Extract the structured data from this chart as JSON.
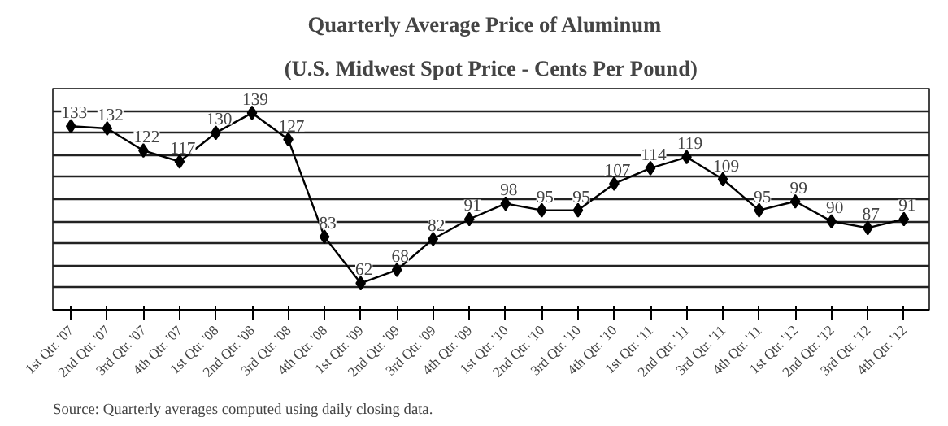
{
  "chart_data": {
    "type": "line",
    "title": "Quarterly  Average Price  of Aluminum",
    "subtitle": "(U.S. Midwest Spot Price - Cents Per Pound)",
    "categories": [
      "1st Qtr. '07",
      "2nd Qtr. '07",
      "3rd Qtr. '07",
      "4th Qtr. '07",
      "1st Qtr. '08",
      "2nd Qtr. '08",
      "3rd Qtr. '08",
      "4th Qtr. '08",
      "1st Qtr. '09",
      "2nd Qtr. '09",
      "3rd Qtr. '09",
      "4th Qtr. '09",
      "1st Qtr. '10",
      "2nd Qtr. '10",
      "3rd Qtr. '10",
      "4th Qtr. '10",
      "1st Qtr. '11",
      "2nd Qtr. '11",
      "3rd Qtr. '11",
      "4th Qtr. '11",
      "1st Qtr. '12",
      "2nd Qtr. '12",
      "3rd Qtr. '12",
      "4th Qtr. '12"
    ],
    "series": [
      {
        "color": "#000000",
        "values": [
          133,
          132,
          122,
          117,
          130,
          139,
          127,
          83,
          62,
          68,
          82,
          91,
          98,
          95,
          95,
          107,
          114,
          119,
          109,
          95,
          99,
          90,
          87,
          91
        ]
      }
    ],
    "ylim": [
      50,
      150
    ],
    "yticks": [
      {
        "value": 50,
        "label": null
      },
      {
        "value": 60,
        "label": null
      },
      {
        "value": 70,
        "label": null
      },
      {
        "value": 80,
        "label": null
      },
      {
        "value": 90,
        "label": null
      },
      {
        "value": 100,
        "label": null
      },
      {
        "value": 110,
        "label": null
      },
      {
        "value": 120,
        "label": null
      },
      {
        "value": 130,
        "label": null
      },
      {
        "value": 140,
        "label": null
      },
      {
        "value": 150,
        "label": null
      }
    ],
    "tick_labels": "x",
    "grid": "y",
    "marker": "diamond",
    "line_style": "solid",
    "data_labels": true,
    "annotations": [
      "Source:  Quarterly averages computed using daily closing data."
    ]
  }
}
